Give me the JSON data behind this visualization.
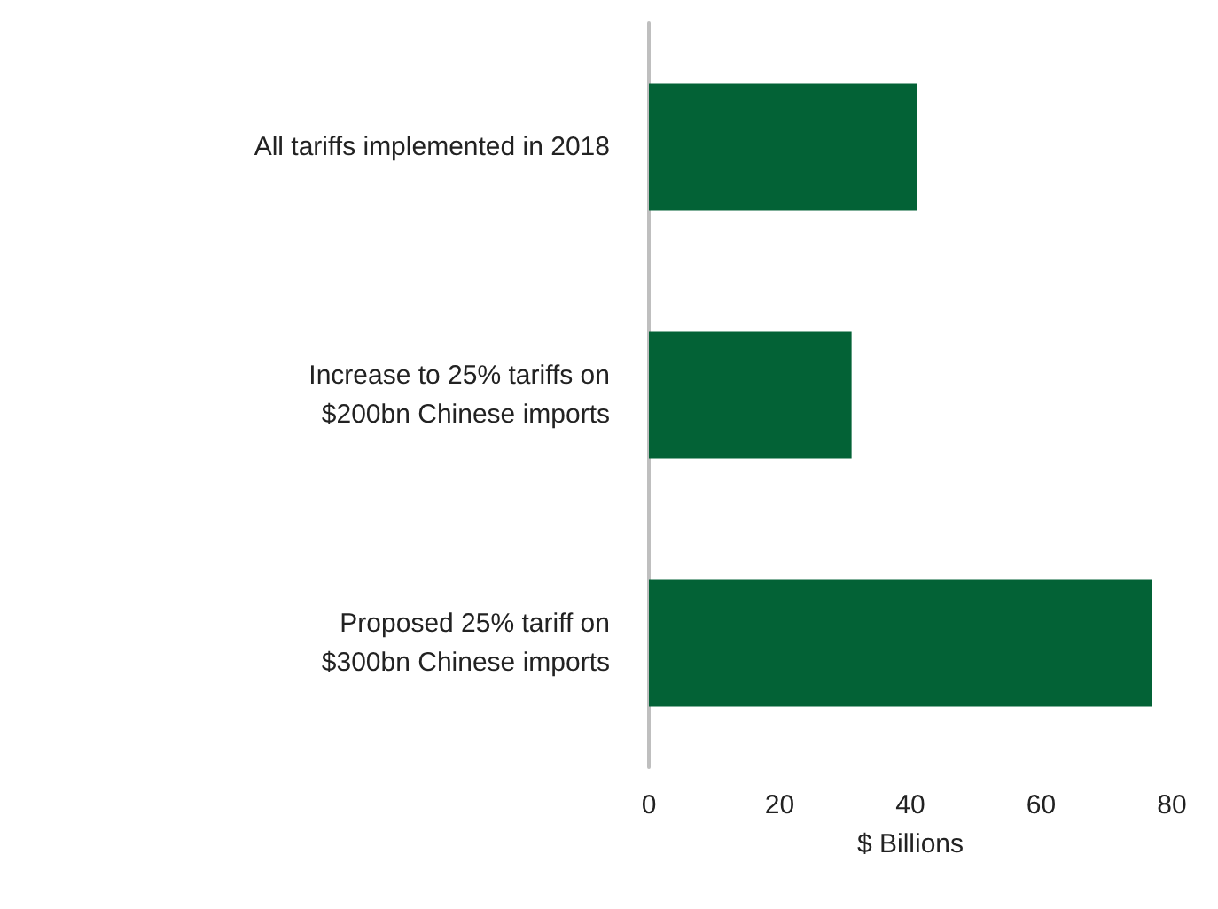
{
  "chart_data": {
    "type": "bar",
    "orientation": "horizontal",
    "xlabel": "$ Billions",
    "categories": [
      "All tariffs implemented in 2018",
      "Increase to 25% tariffs on\n$200bn Chinese imports",
      "Proposed 25% tariff on\n$300bn Chinese imports"
    ],
    "values": [
      41,
      31,
      77
    ],
    "color": "#036236",
    "xlim": [
      0,
      80
    ],
    "xticks": [
      0,
      20,
      40,
      60,
      80
    ]
  }
}
